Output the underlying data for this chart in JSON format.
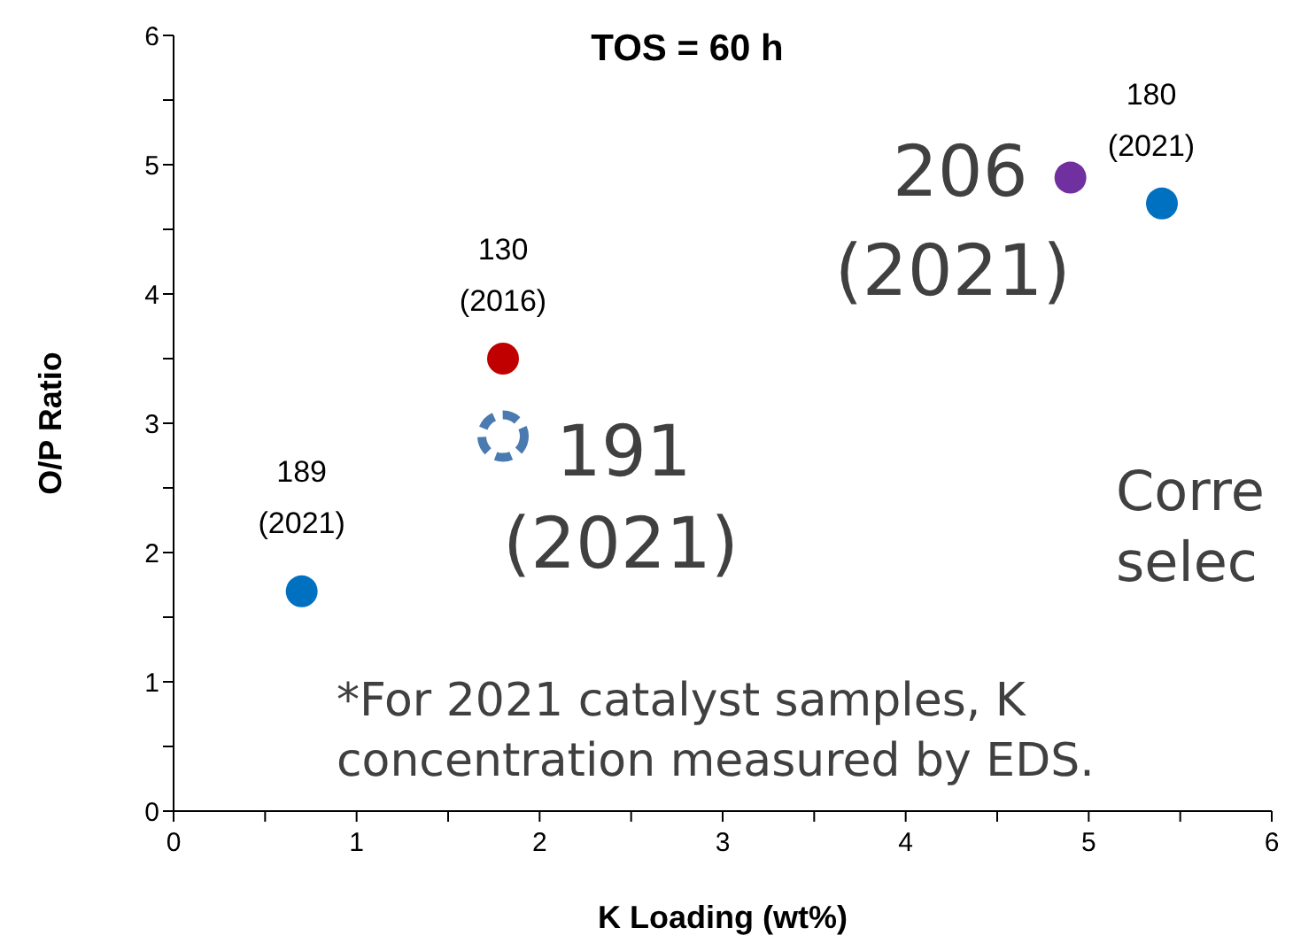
{
  "chart_data": {
    "type": "scatter",
    "title": "TOS = 60 h",
    "xlabel": "K Loading (wt%)",
    "ylabel": "O/P Ratio",
    "xlim": [
      0,
      6
    ],
    "ylim": [
      0,
      6
    ],
    "xticks": [
      0,
      {
        "value": 0.5,
        "label": null
      },
      1,
      {
        "value": 1.5,
        "label": null
      },
      2,
      {
        "value": 2.5,
        "label": null
      },
      3,
      {
        "value": 3.5,
        "label": null
      },
      4,
      {
        "value": 4.5,
        "label": null
      },
      5,
      {
        "value": 5.5,
        "label": null
      },
      6
    ],
    "yticks": [
      0,
      {
        "value": 0.5,
        "label": null
      },
      1,
      {
        "value": 1.5,
        "label": null
      },
      2,
      {
        "value": 2.5,
        "label": null
      },
      3,
      {
        "value": 3.5,
        "label": null
      },
      4,
      {
        "value": 4.5,
        "label": null
      },
      5,
      {
        "value": 5.5,
        "label": null
      },
      6
    ],
    "grid": false,
    "legend": false,
    "marker": "circle",
    "series": [
      {
        "x": [
          0.7,
          1.8,
          4.9,
          5.4
        ],
        "values": [
          1.7,
          3.5,
          4.9,
          4.7
        ],
        "colors": [
          "#0070c0",
          "#c00000",
          "#7030a0",
          "#0070c0"
        ]
      },
      {
        "x": [
          1.8
        ],
        "values": [
          2.9
        ],
        "color": "#4a7ab0",
        "line_style": "dashed"
      }
    ],
    "annotations": [
      {
        "text": "189\n(2021)",
        "x": 0.7,
        "y": 1.7
      },
      {
        "text": "130\n(2016)",
        "x": 1.8,
        "y": 3.5
      },
      {
        "text": "191\n(2021)",
        "x": 1.8,
        "y": 2.9
      },
      {
        "text": "206\n(2021)",
        "x": 4.9,
        "y": 4.9
      },
      {
        "text": "180\n(2021)",
        "x": 5.4,
        "y": 4.7
      },
      "*For 2021 catalyst samples, K\nconcentration measured by EDS.",
      "Corre\nselec"
    ]
  }
}
